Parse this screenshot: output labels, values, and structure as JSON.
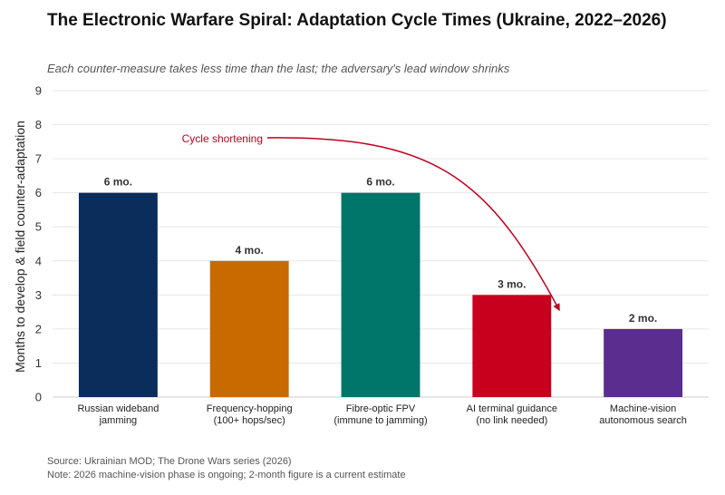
{
  "chart_data": {
    "type": "bar",
    "title": "The Electronic Warfare Spiral: Adaptation Cycle Times (Ukraine, 2022–2026)",
    "subtitle": "Each counter-measure takes less time than the last; the adversary's lead window shrinks",
    "ylabel": "Months to develop & field counter-adaptation",
    "xlabel": "",
    "ylim": [
      0,
      9
    ],
    "yticks": [
      0,
      1,
      2,
      3,
      4,
      5,
      6,
      7,
      8,
      9
    ],
    "grid": true,
    "categories": [
      [
        "Russian wideband",
        "jamming"
      ],
      [
        "Frequency-hopping",
        "(100+ hops/sec)"
      ],
      [
        "Fibre-optic FPV",
        "(immune to jamming)"
      ],
      [
        "AI terminal guidance",
        "(no link needed)"
      ],
      [
        "Machine-vision",
        "autonomous search"
      ]
    ],
    "values": [
      6,
      4,
      6,
      3,
      2
    ],
    "bar_labels": [
      "6 mo.",
      "4 mo.",
      "6 mo.",
      "3 mo.",
      "2 mo."
    ],
    "colors": [
      "#0b2d5b",
      "#c96a00",
      "#00756a",
      "#c8001e",
      "#5b2d8e"
    ],
    "annotation": {
      "text": "Cycle shortening",
      "color": "#c0001e",
      "arrow_from_category_index": 0,
      "arrow_to_category_index": 3,
      "arrow_to_value": 2.55
    }
  },
  "footer": {
    "source": "Source: Ukrainian MOD; The Drone Wars series (2026)",
    "note": "Note: 2026 machine-vision phase is ongoing; 2-month figure is a current estimate"
  }
}
